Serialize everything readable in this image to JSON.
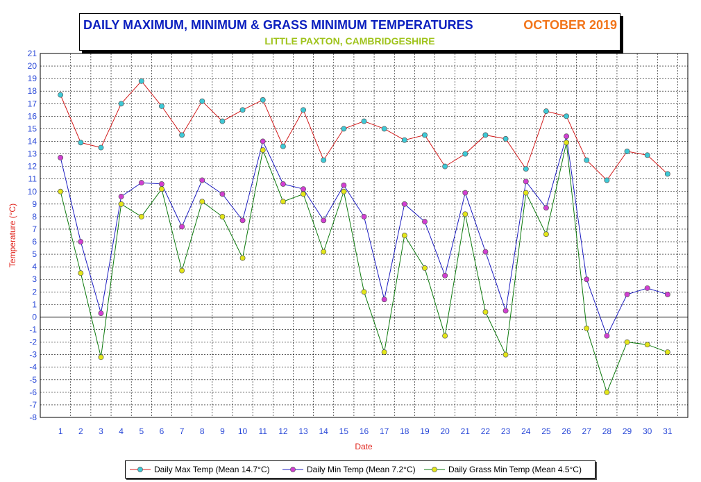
{
  "title": {
    "main": "DAILY MAXIMUM, MINIMUM & GRASS MINIMUM TEMPERATURES",
    "month": "OCTOBER 2019",
    "subtitle": "LITTLE PAXTON, CAMBRIDGESHIRE"
  },
  "legend": {
    "max": "Daily Max Temp (Mean 14.7°C)",
    "min": "Daily Min Temp (Mean 7.2°C)",
    "grass": "Daily Grass Min Temp (Mean 4.5°C)"
  },
  "colors": {
    "title": "#0b1fbf",
    "month": "#f2751a",
    "subtitle": "#9fc31b",
    "axis_labels": "#e0251d",
    "tick_labels": "#2a49d8"
  },
  "chart_data": {
    "type": "line",
    "xlabel": "Date",
    "ylabel": "Temperature (°C)",
    "x": [
      1,
      2,
      3,
      4,
      5,
      6,
      7,
      8,
      9,
      10,
      11,
      12,
      13,
      14,
      15,
      16,
      17,
      18,
      19,
      20,
      21,
      22,
      23,
      24,
      25,
      26,
      27,
      28,
      29,
      30,
      31
    ],
    "xlim": [
      0,
      32
    ],
    "ylim": [
      -8,
      21
    ],
    "yticks": [
      -8,
      -7,
      -6,
      -5,
      -4,
      -3,
      -2,
      -1,
      0,
      1,
      2,
      3,
      4,
      5,
      6,
      7,
      8,
      9,
      10,
      11,
      12,
      13,
      14,
      15,
      16,
      17,
      18,
      19,
      20,
      21
    ],
    "grid": true,
    "legend_position": "bottom",
    "series": [
      {
        "name": "Daily Max Temp (Mean 14.7°C)",
        "line_color": "#d21c1c",
        "marker_color": "#3ec9d6",
        "values": [
          17.7,
          13.9,
          13.5,
          17.0,
          18.8,
          16.8,
          14.5,
          17.2,
          15.6,
          16.5,
          17.3,
          13.6,
          16.5,
          12.5,
          15.0,
          15.6,
          15.0,
          14.1,
          14.5,
          12.0,
          13.0,
          14.5,
          14.2,
          11.8,
          16.4,
          16.0,
          12.5,
          10.9,
          13.2,
          12.9,
          11.4
        ]
      },
      {
        "name": "Daily Min Temp (Mean 7.2°C)",
        "line_color": "#1c1cc0",
        "marker_color": "#d23fd2",
        "values": [
          12.7,
          6.0,
          0.3,
          9.6,
          10.7,
          10.6,
          7.2,
          10.9,
          9.8,
          7.7,
          14.0,
          10.6,
          10.2,
          7.7,
          10.5,
          8.0,
          1.4,
          9.0,
          7.6,
          3.3,
          9.9,
          5.2,
          0.5,
          10.8,
          8.7,
          14.4,
          3.0,
          -1.5,
          1.8,
          2.3,
          1.8
        ]
      },
      {
        "name": "Daily Grass Min Temp (Mean 4.5°C)",
        "line_color": "#0e7a0e",
        "marker_color": "#e3e619",
        "values": [
          10.0,
          3.5,
          -3.2,
          9.0,
          8.0,
          10.2,
          3.7,
          9.2,
          8.0,
          4.7,
          13.3,
          9.2,
          9.8,
          5.2,
          10.0,
          2.0,
          -2.8,
          6.5,
          3.9,
          -1.5,
          8.2,
          0.4,
          -3.0,
          9.9,
          6.6,
          13.9,
          -0.9,
          -6.0,
          -2.0,
          -2.2,
          -2.8
        ]
      }
    ]
  }
}
